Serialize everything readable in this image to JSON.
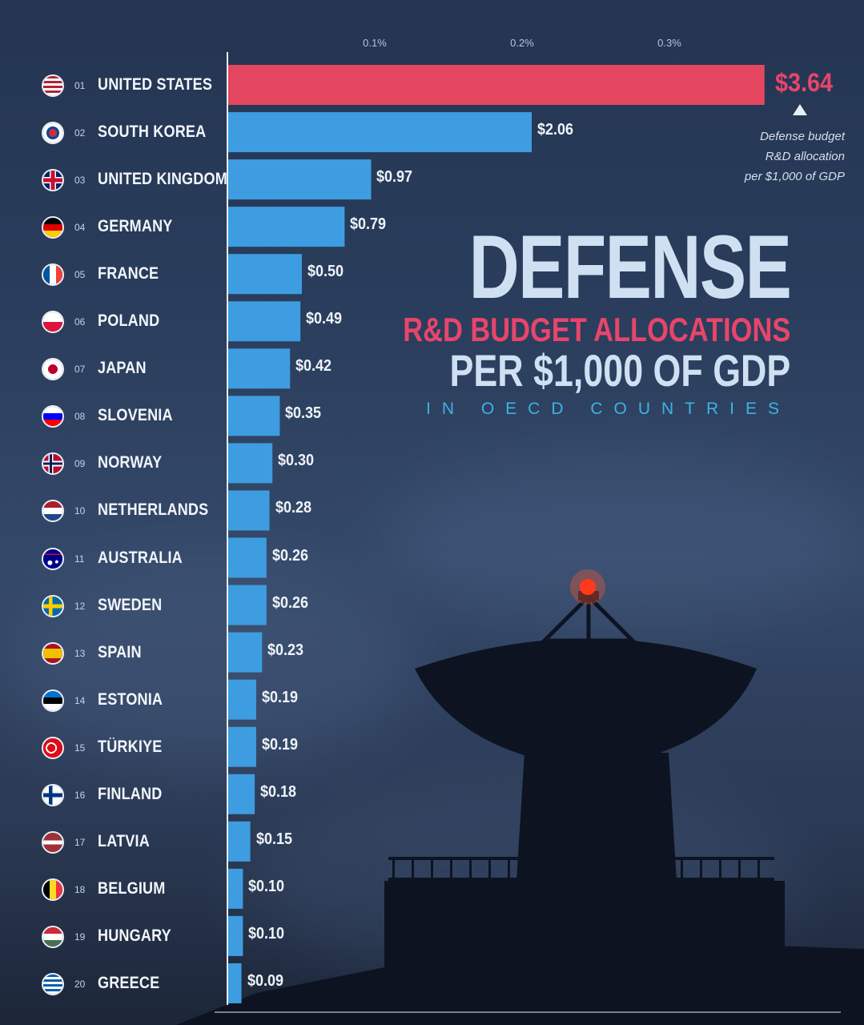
{
  "chart_data": {
    "type": "bar",
    "orientation": "horizontal",
    "title": "DEFENSE",
    "subtitle_1": "R&D BUDGET ALLOCATIONS",
    "subtitle_2": "PER $1,000 OF GDP",
    "subtitle_3": "IN OECD COUNTRIES",
    "annotation": [
      "Defense budget",
      "R&D allocation",
      "per $1,000 of GDP"
    ],
    "x_ticks": [
      {
        "value": 0.1,
        "label": "0.1%"
      },
      {
        "value": 0.2,
        "label": "0.2%"
      },
      {
        "value": 0.3,
        "label": "0.3%"
      }
    ],
    "xlim_percent": [
      0,
      0.364
    ],
    "grid": false,
    "legend": "none",
    "categories": [
      {
        "rank": "01",
        "name": "UNITED STATES",
        "value": 3.64,
        "label": "$3.64",
        "flag": "us-flag",
        "highlight": true
      },
      {
        "rank": "02",
        "name": "SOUTH KOREA",
        "value": 2.06,
        "label": "$2.06",
        "flag": "south-korea-flag"
      },
      {
        "rank": "03",
        "name": "UNITED KINGDOM",
        "value": 0.97,
        "label": "$0.97",
        "flag": "uk-flag"
      },
      {
        "rank": "04",
        "name": "GERMANY",
        "value": 0.79,
        "label": "$0.79",
        "flag": "germany-flag"
      },
      {
        "rank": "05",
        "name": "FRANCE",
        "value": 0.5,
        "label": "$0.50",
        "flag": "france-flag"
      },
      {
        "rank": "06",
        "name": "POLAND",
        "value": 0.49,
        "label": "$0.49",
        "flag": "poland-flag"
      },
      {
        "rank": "07",
        "name": "JAPAN",
        "value": 0.42,
        "label": "$0.42",
        "flag": "japan-flag"
      },
      {
        "rank": "08",
        "name": "SLOVENIA",
        "value": 0.35,
        "label": "$0.35",
        "flag": "slovenia-flag"
      },
      {
        "rank": "09",
        "name": "NORWAY",
        "value": 0.3,
        "label": "$0.30",
        "flag": "norway-flag"
      },
      {
        "rank": "10",
        "name": "NETHERLANDS",
        "value": 0.28,
        "label": "$0.28",
        "flag": "netherlands-flag"
      },
      {
        "rank": "11",
        "name": "AUSTRALIA",
        "value": 0.26,
        "label": "$0.26",
        "flag": "australia-flag"
      },
      {
        "rank": "12",
        "name": "SWEDEN",
        "value": 0.26,
        "label": "$0.26",
        "flag": "sweden-flag"
      },
      {
        "rank": "13",
        "name": "SPAIN",
        "value": 0.23,
        "label": "$0.23",
        "flag": "spain-flag"
      },
      {
        "rank": "14",
        "name": "ESTONIA",
        "value": 0.19,
        "label": "$0.19",
        "flag": "estonia-flag"
      },
      {
        "rank": "15",
        "name": "TÜRKIYE",
        "value": 0.19,
        "label": "$0.19",
        "flag": "turkiye-flag"
      },
      {
        "rank": "16",
        "name": "FINLAND",
        "value": 0.18,
        "label": "$0.18",
        "flag": "finland-flag"
      },
      {
        "rank": "17",
        "name": "LATVIA",
        "value": 0.15,
        "label": "$0.15",
        "flag": "latvia-flag"
      },
      {
        "rank": "18",
        "name": "BELGIUM",
        "value": 0.1,
        "label": "$0.10",
        "flag": "belgium-flag"
      },
      {
        "rank": "19",
        "name": "HUNGARY",
        "value": 0.1,
        "label": "$0.10",
        "flag": "hungary-flag"
      },
      {
        "rank": "20",
        "name": "GREECE",
        "value": 0.09,
        "label": "$0.09",
        "flag": "greece-flag"
      }
    ],
    "colors": {
      "bar": "#3d9de0",
      "bar_highlight": "#e5465f",
      "value_highlight": "#e8456a",
      "axis": "#e9eef6"
    }
  },
  "flag_styles": {
    "us-flag": "repeating-linear-gradient(180deg,#b22234 0 3px,#ffffff 3px 6px)",
    "south-korea-flag": "radial-gradient(circle at 50% 50%, #cd2e3a 0 5px, #0047a0 5px 8px, #ffffff 8px)",
    "uk-flag": "linear-gradient(0deg, transparent 40%, #c8102e 40% 60%, transparent 60%), linear-gradient(90deg, transparent 40%, #c8102e 40% 60%, transparent 60%), linear-gradient(0deg, transparent 33%, #ffffff 33% 67%, transparent 67%), linear-gradient(90deg, transparent 33%, #ffffff 33% 67%, transparent 67%), #012169",
    "germany-flag": "linear-gradient(180deg,#000000 0 33%,#dd0000 33% 66%,#ffce00 66%)",
    "france-flag": "linear-gradient(90deg,#0055a4 0 33%,#ffffff 33% 66%,#ef4135 66%)",
    "poland-flag": "linear-gradient(180deg,#ffffff 0 50%,#dc143c 50%)",
    "japan-flag": "radial-gradient(circle at 50% 50%, #bc002d 0 6px, #ffffff 6px)",
    "slovenia-flag": "linear-gradient(180deg,#ffffff 0 33%,#0000ff 33% 66%,#ff0000 66%)",
    "norway-flag": "linear-gradient(0deg, transparent 43%, #00205b 43% 57%, transparent 57%), linear-gradient(90deg, transparent 34%, #00205b 34% 46%, transparent 46%), linear-gradient(0deg, transparent 35%, #ffffff 35% 65%, transparent 65%), linear-gradient(90deg, transparent 28%, #ffffff 28% 52%, transparent 52%), #ba0c2f",
    "netherlands-flag": "linear-gradient(180deg,#ae1c28 0 33%,#ffffff 33% 66%,#21468b 66%)",
    "australia-flag": "radial-gradient(circle at 70% 65%, #ffffff 0 2px, transparent 2px), radial-gradient(circle at 35% 70%, #ffffff 0 3px, transparent 3px), linear-gradient(0deg, transparent 70%, #c8102e 70% 78%, transparent 78%), #00008b",
    "sweden-flag": "linear-gradient(0deg, transparent 40%, #fecc00 40% 60%, transparent 60%), linear-gradient(90deg, transparent 30%, #fecc00 30% 48%, transparent 48%), #006aa7",
    "spain-flag": "linear-gradient(180deg,#aa151b 0 25%,#f1bf00 25% 75%,#aa151b 75%)",
    "estonia-flag": "linear-gradient(180deg,#0072ce 0 33%,#000000 33% 66%,#ffffff 66%)",
    "turkiye-flag": "radial-gradient(circle at 42% 50%, #e30a17 0 5px, #ffffff 5px 7px, transparent 7px), #e30a17",
    "finland-flag": "linear-gradient(0deg, transparent 40%, #003580 40% 60%, transparent 60%), linear-gradient(90deg, transparent 30%, #003580 30% 48%, transparent 48%), #ffffff",
    "latvia-flag": "linear-gradient(180deg,#9e3039 0 40%,#ffffff 40% 60%,#9e3039 60%)",
    "belgium-flag": "linear-gradient(90deg,#000000 0 33%,#fdda24 33% 66%,#ef3340 66%)",
    "hungary-flag": "linear-gradient(180deg,#ce2939 0 33%,#ffffff 33% 66%,#477050 66%)",
    "greece-flag": "repeating-linear-gradient(180deg,#0d5eaf 0 3px,#ffffff 3px 6px)"
  }
}
